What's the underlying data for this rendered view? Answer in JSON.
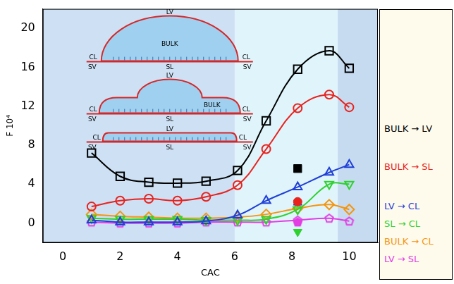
{
  "chart_data": {
    "type": "line",
    "x_label": "CAC",
    "y_label": "F 10⁴",
    "xlim": [
      -0.7,
      11
    ],
    "xticks": [
      0,
      2,
      4,
      6,
      8,
      10
    ],
    "ylim": [
      -2,
      22
    ],
    "yticks": [
      0,
      4,
      8,
      12,
      16,
      20
    ],
    "grid": false,
    "legend": "right",
    "shaded_regions": [
      {
        "from": -0.7,
        "to": 6.0,
        "color": "#cde0f4"
      },
      {
        "from": 6.0,
        "to": 9.6,
        "color": "#dff4fb"
      },
      {
        "from": 9.6,
        "to": 11,
        "color": "#c6dbf0"
      }
    ],
    "insets": [
      {
        "top": "LV",
        "center": "BULK",
        "contact_left": "CL",
        "contact_right": "CL",
        "substrate_left": "SV",
        "substrate_center": "SL",
        "substrate_right": "SV"
      },
      {
        "top": "LV",
        "center": "BULK",
        "contact_left": "CL",
        "contact_right": "CL",
        "substrate_left": "SV",
        "substrate_center": "SL",
        "substrate_right": "SV"
      },
      {
        "top": "LV",
        "contact_left": "CL",
        "contact_right": "CL",
        "substrate_left": "SV",
        "substrate_center": "SL",
        "substrate_right": "SV"
      }
    ],
    "x": [
      1,
      2,
      3,
      4,
      5,
      6.1,
      7.1,
      8.2,
      9.3,
      10
    ],
    "series": [
      {
        "name": "BULK → LV",
        "color": "#000000",
        "marker": "square",
        "line_style": "solid",
        "values": [
          7.2,
          4.8,
          4.2,
          4.1,
          4.3,
          5.4,
          10.5,
          15.8,
          17.7,
          15.9
        ],
        "highlight": {
          "x": 8.2,
          "y": 5.6
        }
      },
      {
        "name": "BULK → SL",
        "color": "#e8231e",
        "marker": "circle",
        "line_style": "solid",
        "values": [
          1.7,
          2.3,
          2.5,
          2.3,
          2.7,
          3.9,
          7.6,
          11.8,
          13.2,
          11.9
        ],
        "highlight": {
          "x": 8.2,
          "y": 2.2
        }
      },
      {
        "name": "LV → CL",
        "color": "#1f3fd6",
        "marker": "triangle-up",
        "line_style": "solid",
        "values": [
          0.3,
          0.1,
          0.1,
          0.1,
          0.2,
          0.8,
          2.3,
          3.7,
          5.2,
          6.0
        ],
        "highlight": {
          "x": 8.2,
          "y": 2.1
        }
      },
      {
        "name": "SL → CL",
        "color": "#2fd12f",
        "marker": "triangle-down",
        "line_style": "solid",
        "values": [
          0.5,
          0.4,
          0.4,
          0.4,
          0.3,
          0.3,
          0.4,
          1.4,
          4.0,
          4.0
        ],
        "highlight": {
          "x": 8.2,
          "y": -0.9
        }
      },
      {
        "name": "BULK → CL",
        "color": "#f5950f",
        "marker": "diamond",
        "line_style": "solid",
        "values": [
          0.9,
          0.7,
          0.6,
          0.5,
          0.5,
          0.6,
          0.9,
          1.5,
          1.9,
          1.4
        ]
      },
      {
        "name": "LV → SL",
        "color": "#e23ee2",
        "marker": "pentagon",
        "line_style": "solid",
        "values": [
          0.1,
          0.0,
          0.0,
          0.0,
          0.1,
          0.1,
          0.1,
          0.3,
          0.5,
          0.2
        ],
        "highlight": {
          "x": 8.2,
          "y": 0.1
        }
      }
    ]
  }
}
